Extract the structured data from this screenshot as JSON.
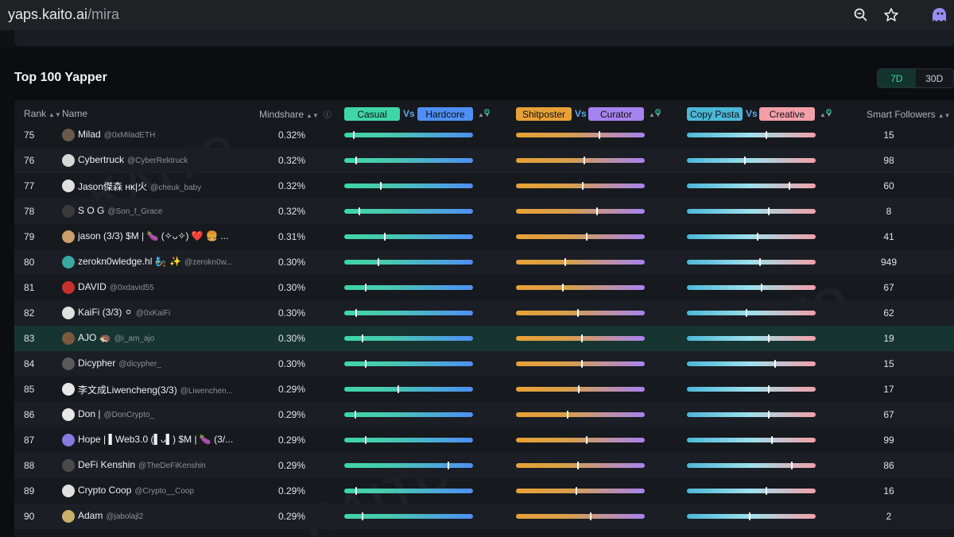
{
  "browser": {
    "url_domain": "yaps.kaito.ai",
    "url_path": "/mira"
  },
  "section": {
    "title": "Top 100 Yapper",
    "periods": [
      "7D",
      "30D"
    ],
    "active_period": "7D"
  },
  "columns": {
    "rank": "Rank",
    "name": "Name",
    "mindshare": "Mindshare",
    "pair1": {
      "left": "Casual",
      "vs": "Vs",
      "right": "Hardcore"
    },
    "pair2": {
      "left": "Shitposter",
      "vs": "Vs",
      "right": "Curator"
    },
    "pair3": {
      "left": "Copy Pasta",
      "vs": "Vs",
      "right": "Creative"
    },
    "smart_followers": "Smart Followers"
  },
  "colors": {
    "casual": "#3fd6a6",
    "hardcore": "#4f8ff5",
    "shitposter": "#e8a136",
    "curator": "#a783f0",
    "copy_pasta": "#4cb8d8",
    "creative": "#f2a0a8",
    "accent": "#38d6a8"
  },
  "rows": [
    {
      "rank": "75",
      "name": "Milad",
      "handle": "@0xMiladETH",
      "mindshare": "0.32%",
      "s1": 0.07,
      "s2": 0.65,
      "s3": 0.62,
      "smart_followers": "15",
      "avatar": "#6b5a4a"
    },
    {
      "rank": "76",
      "name": "Cybertruck",
      "handle": "@CyberRektruck",
      "mindshare": "0.32%",
      "s1": 0.09,
      "s2": 0.53,
      "s3": 0.45,
      "smart_followers": "98",
      "avatar": "#d8d8d8"
    },
    {
      "rank": "77",
      "name": "Jason傑森 нκ|⽕",
      "handle": "@cheuk_baby",
      "mindshare": "0.32%",
      "s1": 0.28,
      "s2": 0.52,
      "s3": 0.8,
      "smart_followers": "60",
      "avatar": "#e0e0e0"
    },
    {
      "rank": "78",
      "name": "S O G",
      "handle": "@Son_f_Grace",
      "mindshare": "0.32%",
      "s1": 0.11,
      "s2": 0.63,
      "s3": 0.64,
      "smart_followers": "8",
      "avatar": "#3a3a3a"
    },
    {
      "rank": "79",
      "name": "jason (3/3) $M | 🍆 (✧ᴗ✧) ❤️ 🍔 ...",
      "handle": "",
      "mindshare": "0.31%",
      "s1": 0.31,
      "s2": 0.55,
      "s3": 0.55,
      "smart_followers": "41",
      "avatar": "#c9a06a"
    },
    {
      "rank": "80",
      "name": "zerokn0wledge.hl 🧞 ✨",
      "handle": "@zerokn0w...",
      "mindshare": "0.30%",
      "s1": 0.26,
      "s2": 0.38,
      "s3": 0.57,
      "smart_followers": "949",
      "avatar": "#3aa7a0"
    },
    {
      "rank": "81",
      "name": "DAVID",
      "handle": "@0xdavid55",
      "mindshare": "0.30%",
      "s1": 0.16,
      "s2": 0.36,
      "s3": 0.58,
      "smart_followers": "67",
      "avatar": "#c8302c"
    },
    {
      "rank": "82",
      "name": "KaiFi (3/3) ⚪",
      "handle": "@0xKaiFi",
      "mindshare": "0.30%",
      "s1": 0.09,
      "s2": 0.48,
      "s3": 0.46,
      "smart_followers": "62",
      "avatar": "#e0e0e0"
    },
    {
      "rank": "83",
      "name": "AJO 🦔",
      "handle": "@i_am_ajo",
      "mindshare": "0.30%",
      "s1": 0.14,
      "s2": 0.51,
      "s3": 0.64,
      "smart_followers": "19",
      "avatar": "#7a5a3a"
    },
    {
      "rank": "84",
      "name": "Dicypher",
      "handle": "@dicypher_",
      "mindshare": "0.30%",
      "s1": 0.16,
      "s2": 0.51,
      "s3": 0.69,
      "smart_followers": "15",
      "avatar": "#5a5a5a"
    },
    {
      "rank": "85",
      "name": "李文成Liwencheng(3/3)",
      "handle": "@Liwenchen...",
      "mindshare": "0.29%",
      "s1": 0.42,
      "s2": 0.49,
      "s3": 0.64,
      "smart_followers": "17",
      "avatar": "#e8e8e8"
    },
    {
      "rank": "86",
      "name": "Don |",
      "handle": "@DonCrypto_",
      "mindshare": "0.29%",
      "s1": 0.08,
      "s2": 0.4,
      "s3": 0.64,
      "smart_followers": "67",
      "avatar": "#e8e8e8"
    },
    {
      "rank": "87",
      "name": "Hope | ▌Web3.0 (▌ᴗ▌) $M | 🍆 (3/...",
      "handle": "",
      "mindshare": "0.29%",
      "s1": 0.16,
      "s2": 0.55,
      "s3": 0.66,
      "smart_followers": "99",
      "avatar": "#8a7ae0"
    },
    {
      "rank": "88",
      "name": "DeFi Kenshin",
      "handle": "@TheDeFiKenshin",
      "mindshare": "0.29%",
      "s1": 0.81,
      "s2": 0.48,
      "s3": 0.82,
      "smart_followers": "86",
      "avatar": "#4a4a4a"
    },
    {
      "rank": "89",
      "name": "Crypto Coop",
      "handle": "@Crypto__Coop",
      "mindshare": "0.29%",
      "s1": 0.09,
      "s2": 0.47,
      "s3": 0.62,
      "smart_followers": "16",
      "avatar": "#e0e0e0"
    },
    {
      "rank": "90",
      "name": "Adam",
      "handle": "@jabolajl2",
      "mindshare": "0.29%",
      "s1": 0.14,
      "s2": 0.58,
      "s3": 0.49,
      "smart_followers": "2",
      "avatar": "#c9b06a"
    }
  ],
  "watermark": "KAITO"
}
